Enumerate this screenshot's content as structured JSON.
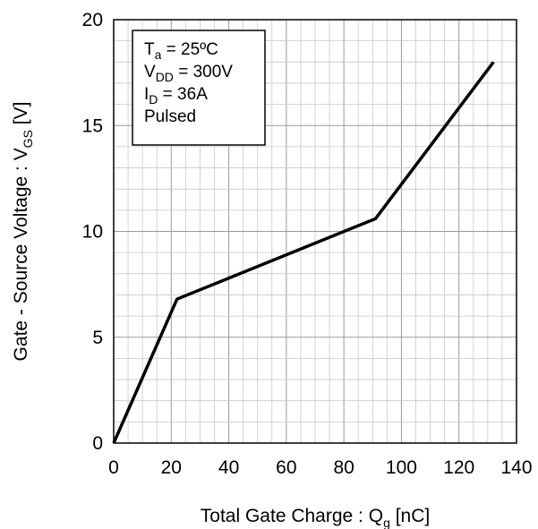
{
  "chart_data": {
    "type": "line",
    "xlabel": {
      "main": "Total Gate Charge : Q",
      "sub": "g",
      "unit": " [nC]"
    },
    "ylabel": {
      "main": "Gate - Source Voltage : V",
      "sub": "GS",
      "unit": " [V]"
    },
    "xlim": [
      0,
      140
    ],
    "ylim": [
      0,
      20
    ],
    "x_ticks": [
      0,
      20,
      40,
      60,
      80,
      100,
      120,
      140
    ],
    "y_ticks": [
      0,
      5,
      10,
      15,
      20
    ],
    "x_minor_step": 5,
    "y_minor_step": 1,
    "grid": true,
    "series": [
      {
        "x": [
          0,
          22,
          91,
          132
        ],
        "y": [
          0,
          6.8,
          10.6,
          18
        ],
        "color": "#000000"
      }
    ],
    "legend_placement": "top-left",
    "conditions": [
      {
        "main": "T",
        "sub": "a",
        "rest": " = 25ºC"
      },
      {
        "main": "V",
        "sub": "DD",
        "rest": " = 300V"
      },
      {
        "main": "I",
        "sub": "D",
        "rest": " = 36A"
      },
      {
        "main": "Pulsed",
        "sub": "",
        "rest": ""
      }
    ]
  }
}
